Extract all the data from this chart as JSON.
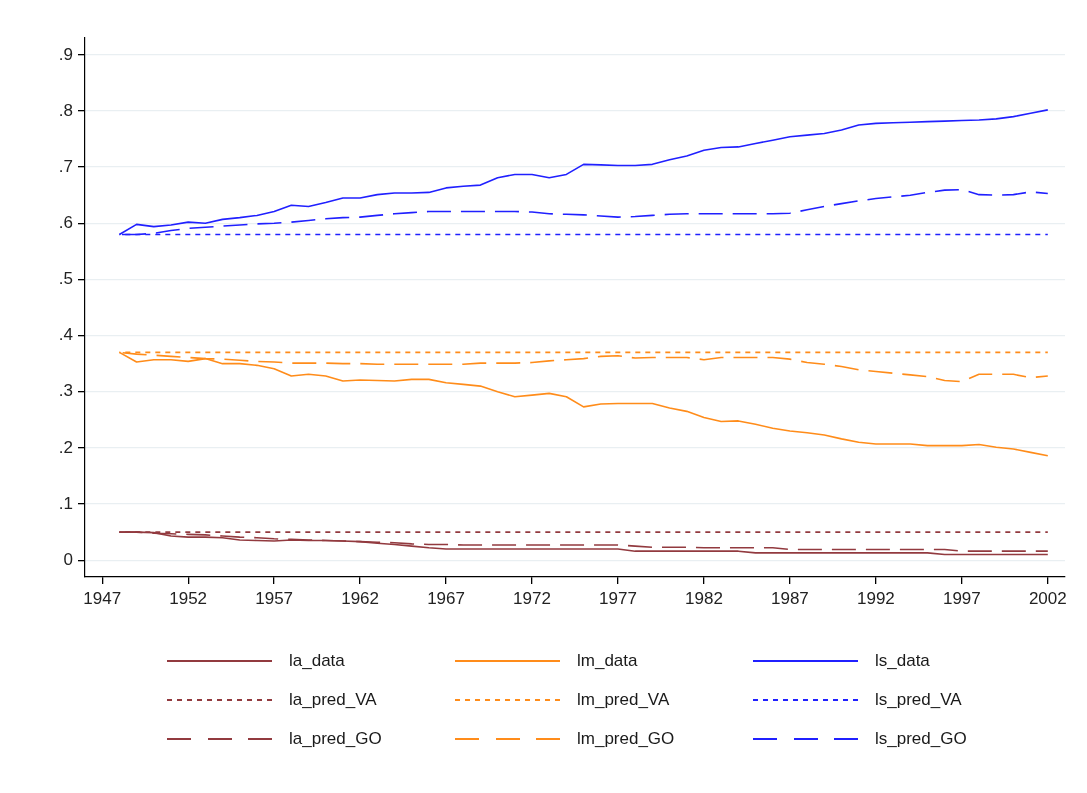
{
  "chart_data": {
    "type": "line",
    "x": [
      1948,
      1949,
      1950,
      1951,
      1952,
      1953,
      1954,
      1955,
      1956,
      1957,
      1958,
      1959,
      1960,
      1961,
      1962,
      1963,
      1964,
      1965,
      1966,
      1967,
      1968,
      1969,
      1970,
      1971,
      1972,
      1973,
      1974,
      1975,
      1976,
      1977,
      1978,
      1979,
      1980,
      1981,
      1982,
      1983,
      1984,
      1985,
      1986,
      1987,
      1988,
      1989,
      1990,
      1991,
      1992,
      1993,
      1994,
      1995,
      1996,
      1997,
      1998,
      1999,
      2000,
      2001,
      2002
    ],
    "xlim": [
      1946,
      2003
    ],
    "xticks": [
      1947,
      1952,
      1957,
      1962,
      1967,
      1972,
      1977,
      1982,
      1987,
      1992,
      1997,
      2002
    ],
    "ylim": [
      -0.03,
      0.93
    ],
    "yticks": [
      0,
      {
        "value": 0.1,
        "label": ".1"
      },
      {
        "value": 0.2,
        "label": ".2"
      },
      {
        "value": 0.3,
        "label": ".3"
      },
      {
        "value": 0.4,
        "label": ".4"
      },
      {
        "value": 0.5,
        "label": ".5"
      },
      {
        "value": 0.6,
        "label": ".6"
      },
      {
        "value": 0.7,
        "label": ".7"
      },
      {
        "value": 0.8,
        "label": ".8"
      },
      {
        "value": 0.9,
        "label": ".9"
      }
    ],
    "grid": "y",
    "legend": "bottom",
    "marker": "none",
    "series": [
      {
        "name": "la_data",
        "color": "#923a3f",
        "line_style": "solid",
        "values": [
          0.05,
          0.05,
          0.049,
          0.043,
          0.041,
          0.041,
          0.04,
          0.036,
          0.035,
          0.034,
          0.036,
          0.035,
          0.035,
          0.034,
          0.033,
          0.03,
          0.028,
          0.025,
          0.022,
          0.02,
          0.02,
          0.02,
          0.02,
          0.02,
          0.02,
          0.02,
          0.02,
          0.02,
          0.02,
          0.02,
          0.016,
          0.016,
          0.016,
          0.016,
          0.016,
          0.016,
          0.016,
          0.013,
          0.013,
          0.013,
          0.013,
          0.013,
          0.013,
          0.013,
          0.013,
          0.013,
          0.013,
          0.013,
          0.01,
          0.01,
          0.01,
          0.01,
          0.01,
          0.01,
          0.01
        ]
      },
      {
        "name": "la_pred_VA",
        "color": "#923a3f",
        "line_style": "dotted",
        "values": [
          0.05,
          0.05,
          0.05,
          0.05,
          0.05,
          0.05,
          0.05,
          0.05,
          0.05,
          0.05,
          0.05,
          0.05,
          0.05,
          0.05,
          0.05,
          0.05,
          0.05,
          0.05,
          0.05,
          0.05,
          0.05,
          0.05,
          0.05,
          0.05,
          0.05,
          0.05,
          0.05,
          0.05,
          0.05,
          0.05,
          0.05,
          0.05,
          0.05,
          0.05,
          0.05,
          0.05,
          0.05,
          0.05,
          0.05,
          0.05,
          0.05,
          0.05,
          0.05,
          0.05,
          0.05,
          0.05,
          0.05,
          0.05,
          0.05,
          0.05,
          0.05,
          0.05,
          0.05,
          0.05,
          0.05
        ]
      },
      {
        "name": "la_pred_GO",
        "color": "#923a3f",
        "line_style": "dashed",
        "values": [
          0.05,
          0.05,
          0.048,
          0.047,
          0.046,
          0.045,
          0.043,
          0.041,
          0.04,
          0.038,
          0.037,
          0.036,
          0.035,
          0.034,
          0.033,
          0.032,
          0.031,
          0.029,
          0.028,
          0.028,
          0.027,
          0.027,
          0.027,
          0.027,
          0.027,
          0.027,
          0.027,
          0.027,
          0.027,
          0.027,
          0.025,
          0.023,
          0.023,
          0.023,
          0.022,
          0.022,
          0.022,
          0.022,
          0.022,
          0.019,
          0.019,
          0.019,
          0.019,
          0.019,
          0.019,
          0.019,
          0.019,
          0.019,
          0.019,
          0.016,
          0.016,
          0.016,
          0.016,
          0.016,
          0.016
        ]
      },
      {
        "name": "lm_data",
        "color": "#ff8c1a",
        "line_style": "solid",
        "values": [
          0.37,
          0.353,
          0.357,
          0.357,
          0.354,
          0.359,
          0.35,
          0.35,
          0.347,
          0.341,
          0.328,
          0.331,
          0.328,
          0.319,
          0.321,
          0.32,
          0.319,
          0.322,
          0.322,
          0.316,
          0.313,
          0.31,
          0.3,
          0.291,
          0.294,
          0.297,
          0.291,
          0.273,
          0.278,
          0.279,
          0.279,
          0.279,
          0.271,
          0.265,
          0.254,
          0.247,
          0.248,
          0.242,
          0.235,
          0.23,
          0.227,
          0.223,
          0.216,
          0.21,
          0.207,
          0.207,
          0.207,
          0.204,
          0.204,
          0.204,
          0.206,
          0.201,
          0.198,
          0.192,
          0.186
        ]
      },
      {
        "name": "lm_pred_VA",
        "color": "#ff8c1a",
        "line_style": "dotted",
        "values": [
          0.37,
          0.37,
          0.37,
          0.37,
          0.37,
          0.37,
          0.37,
          0.37,
          0.37,
          0.37,
          0.37,
          0.37,
          0.37,
          0.37,
          0.37,
          0.37,
          0.37,
          0.37,
          0.37,
          0.37,
          0.37,
          0.37,
          0.37,
          0.37,
          0.37,
          0.37,
          0.37,
          0.37,
          0.37,
          0.37,
          0.37,
          0.37,
          0.37,
          0.37,
          0.37,
          0.37,
          0.37,
          0.37,
          0.37,
          0.37,
          0.37,
          0.37,
          0.37,
          0.37,
          0.37,
          0.37,
          0.37,
          0.37,
          0.37,
          0.37,
          0.37,
          0.37,
          0.37,
          0.37,
          0.37
        ]
      },
      {
        "name": "lm_pred_GO",
        "color": "#ff8c1a",
        "line_style": "dashed",
        "values": [
          0.37,
          0.367,
          0.365,
          0.363,
          0.361,
          0.359,
          0.358,
          0.356,
          0.354,
          0.353,
          0.351,
          0.351,
          0.351,
          0.35,
          0.35,
          0.349,
          0.349,
          0.349,
          0.349,
          0.349,
          0.349,
          0.351,
          0.351,
          0.351,
          0.352,
          0.355,
          0.357,
          0.359,
          0.363,
          0.364,
          0.36,
          0.361,
          0.361,
          0.361,
          0.357,
          0.361,
          0.361,
          0.361,
          0.361,
          0.358,
          0.352,
          0.349,
          0.345,
          0.339,
          0.336,
          0.333,
          0.33,
          0.327,
          0.32,
          0.318,
          0.331,
          0.331,
          0.331,
          0.325,
          0.328
        ]
      },
      {
        "name": "ls_data",
        "color": "#2020ff",
        "line_style": "solid",
        "values": [
          0.58,
          0.598,
          0.594,
          0.597,
          0.602,
          0.6,
          0.607,
          0.61,
          0.614,
          0.621,
          0.632,
          0.63,
          0.637,
          0.645,
          0.645,
          0.651,
          0.654,
          0.654,
          0.655,
          0.663,
          0.666,
          0.668,
          0.681,
          0.687,
          0.687,
          0.681,
          0.687,
          0.705,
          0.704,
          0.703,
          0.703,
          0.705,
          0.713,
          0.72,
          0.73,
          0.735,
          0.736,
          0.742,
          0.748,
          0.754,
          0.757,
          0.76,
          0.766,
          0.775,
          0.778,
          0.779,
          0.78,
          0.781,
          0.782,
          0.783,
          0.784,
          0.786,
          0.79,
          0.796,
          0.802
        ]
      },
      {
        "name": "ls_pred_VA",
        "color": "#2020ff",
        "line_style": "dotted",
        "values": [
          0.58,
          0.58,
          0.58,
          0.58,
          0.58,
          0.58,
          0.58,
          0.58,
          0.58,
          0.58,
          0.58,
          0.58,
          0.58,
          0.58,
          0.58,
          0.58,
          0.58,
          0.58,
          0.58,
          0.58,
          0.58,
          0.58,
          0.58,
          0.58,
          0.58,
          0.58,
          0.58,
          0.58,
          0.58,
          0.58,
          0.58,
          0.58,
          0.58,
          0.58,
          0.58,
          0.58,
          0.58,
          0.58,
          0.58,
          0.58,
          0.58,
          0.58,
          0.58,
          0.58,
          0.58,
          0.58,
          0.58,
          0.58,
          0.58,
          0.58,
          0.58,
          0.58,
          0.58,
          0.58,
          0.58
        ]
      },
      {
        "name": "ls_pred_GO",
        "color": "#2020ff",
        "line_style": "dashed",
        "values": [
          0.58,
          0.58,
          0.582,
          0.587,
          0.591,
          0.593,
          0.595,
          0.597,
          0.599,
          0.6,
          0.602,
          0.605,
          0.608,
          0.61,
          0.611,
          0.614,
          0.617,
          0.619,
          0.621,
          0.621,
          0.621,
          0.621,
          0.621,
          0.621,
          0.62,
          0.617,
          0.616,
          0.615,
          0.613,
          0.611,
          0.612,
          0.614,
          0.616,
          0.617,
          0.617,
          0.617,
          0.617,
          0.617,
          0.617,
          0.618,
          0.624,
          0.63,
          0.635,
          0.64,
          0.644,
          0.647,
          0.65,
          0.655,
          0.659,
          0.66,
          0.651,
          0.65,
          0.651,
          0.656,
          0.653
        ]
      }
    ]
  }
}
